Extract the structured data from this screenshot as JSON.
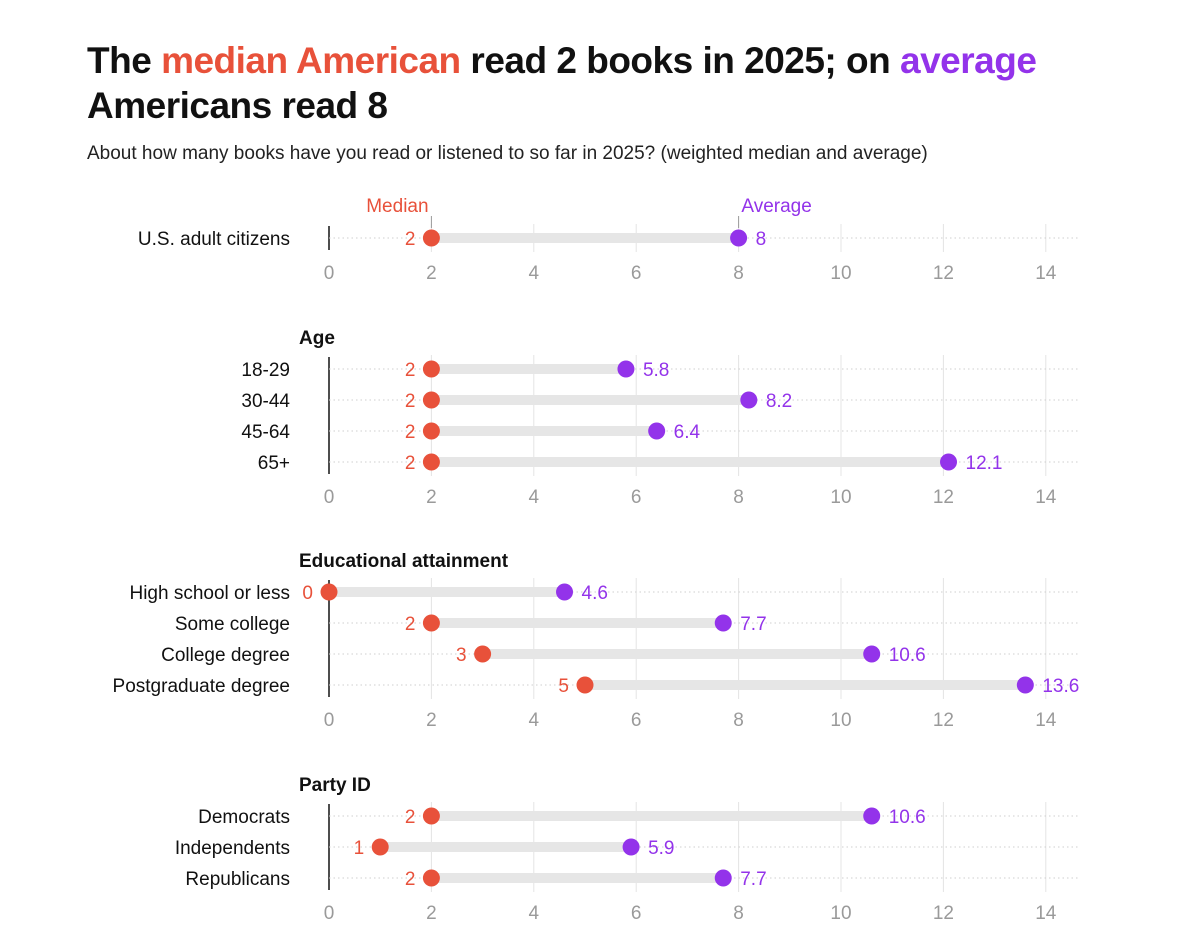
{
  "header": {
    "title_parts": [
      "The ",
      "median American",
      " read 2 books in 2025; on ",
      "average",
      " Americans read 8"
    ],
    "subtitle": "About how many books have you read or listened to so far in 2025? (weighted median and average)"
  },
  "colors": {
    "median": "#e8513a",
    "average": "#9333ea",
    "connector": "#e6e6e6",
    "grid": "#e4e4e4",
    "tick_label": "#9a9a9a",
    "text": "#111111"
  },
  "chart_data": {
    "type": "dumbbell",
    "xlim": [
      0,
      14
    ],
    "ticks": [
      0,
      2,
      4,
      6,
      8,
      10,
      12,
      14
    ],
    "legend": {
      "median_label": "Median",
      "average_label": "Average"
    },
    "groups": [
      {
        "title": "",
        "rows": [
          {
            "label": "U.S. adult citizens",
            "median": 2,
            "average": 8
          }
        ]
      },
      {
        "title": "Age",
        "rows": [
          {
            "label": "18-29",
            "median": 2,
            "average": 5.8
          },
          {
            "label": "30-44",
            "median": 2,
            "average": 8.2
          },
          {
            "label": "45-64",
            "median": 2,
            "average": 6.4
          },
          {
            "label": "65+",
            "median": 2,
            "average": 12.1
          }
        ]
      },
      {
        "title": "Educational attainment",
        "rows": [
          {
            "label": "High school or less",
            "median": 0,
            "average": 4.6
          },
          {
            "label": "Some college",
            "median": 2,
            "average": 7.7
          },
          {
            "label": "College degree",
            "median": 3,
            "average": 10.6
          },
          {
            "label": "Postgraduate degree",
            "median": 5,
            "average": 13.6
          }
        ]
      },
      {
        "title": "Party ID",
        "rows": [
          {
            "label": "Democrats",
            "median": 2,
            "average": 10.6
          },
          {
            "label": "Independents",
            "median": 1,
            "average": 5.9
          },
          {
            "label": "Republicans",
            "median": 2,
            "average": 7.7
          }
        ]
      }
    ]
  }
}
